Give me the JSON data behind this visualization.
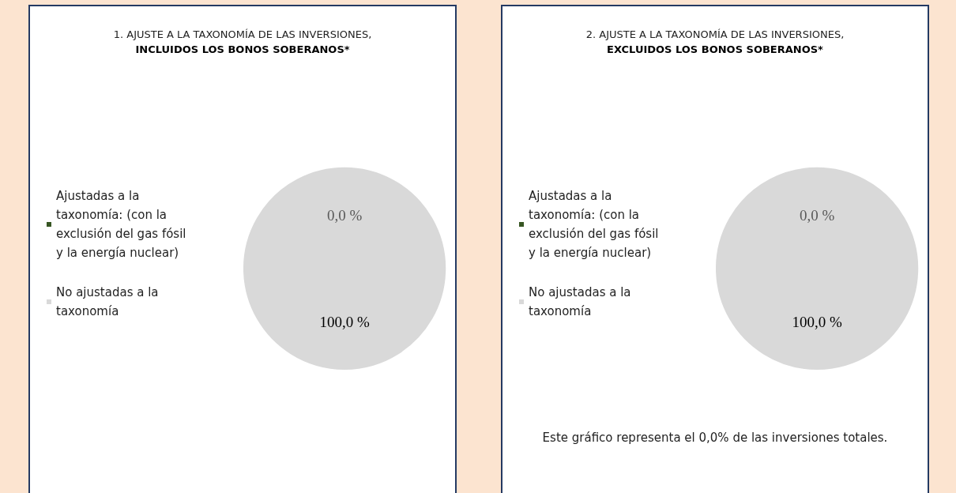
{
  "chart_data": [
    {
      "type": "pie",
      "title": "1. AJUSTE A LA TAXONOMÍA DE LAS INVERSIONES,",
      "subtitle": "INCLUIDOS LOS BONOS SOBERANOS*",
      "categories": [
        "Ajustadas a la taxonomía: (con la exclusión del gas fósil y la energía nuclear)",
        "No ajustadas a la taxonomía"
      ],
      "values": [
        0,
        100
      ],
      "colors": [
        "#375623",
        "#d9d9d9"
      ],
      "value_labels": [
        "0,0 %",
        "100,0 %"
      ],
      "legend": "left"
    },
    {
      "type": "pie",
      "title": "2. AJUSTE A LA TAXONOMÍA DE LAS INVERSIONES,",
      "subtitle": "EXCLUIDOS LOS BONOS SOBERANOS*",
      "categories": [
        "Ajustadas a la taxonomía: (con la exclusión del gas fósil y la energía nuclear)",
        "No ajustadas a la taxonomía"
      ],
      "values": [
        0,
        100
      ],
      "colors": [
        "#375623",
        "#d9d9d9"
      ],
      "value_labels": [
        "0,0 %",
        "100,0 %"
      ],
      "legend": "left",
      "annotations": [
        "Este gráfico representa el 0,0% de las inversiones totales."
      ]
    }
  ]
}
